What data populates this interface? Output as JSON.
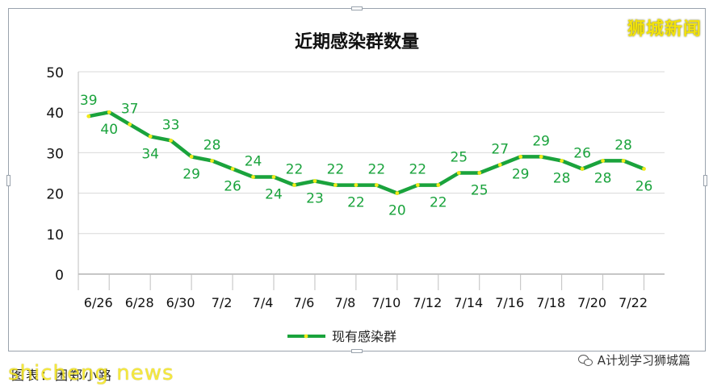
{
  "brand": {
    "name": "狮城新闻"
  },
  "footer": {
    "source": "图表：困郑小路",
    "watermark": "shicheng news",
    "caption": "A计划学习狮城篇"
  },
  "colors": {
    "line": "#1aa33c",
    "marker": "#f2ea1a",
    "label": "#1aa33c",
    "grid": "#d9d9d9"
  },
  "chart_data": {
    "type": "line",
    "title": "近期感染群数量",
    "xlabel": "",
    "ylabel": "",
    "ylim": [
      0,
      50
    ],
    "yticks": [
      "0",
      "10",
      "20",
      "30",
      "40",
      "50"
    ],
    "x": [
      "6/26",
      "6/27",
      "6/28",
      "6/29",
      "6/30",
      "7/1",
      "7/2",
      "7/3",
      "7/4",
      "7/5",
      "7/6",
      "7/7",
      "7/8",
      "7/9",
      "7/10",
      "7/11",
      "7/12",
      "7/13",
      "7/14",
      "7/15",
      "7/16",
      "7/17",
      "7/18",
      "7/19",
      "7/20",
      "7/21",
      "7/22",
      "7/23"
    ],
    "xtick_labels": [
      "6/26",
      "6/28",
      "6/30",
      "7/2",
      "7/4",
      "7/6",
      "7/8",
      "7/10",
      "7/12",
      "7/14",
      "7/16",
      "7/18",
      "7/20",
      "7/22"
    ],
    "series": [
      {
        "name": "现有感染群",
        "values": [
          39,
          40,
          37,
          34,
          33,
          29,
          28,
          26,
          24,
          24,
          22,
          23,
          22,
          22,
          22,
          20,
          22,
          22,
          25,
          25,
          27,
          29,
          29,
          28,
          26,
          28,
          28,
          26
        ]
      }
    ],
    "legend_position": "bottom",
    "grid": true
  }
}
